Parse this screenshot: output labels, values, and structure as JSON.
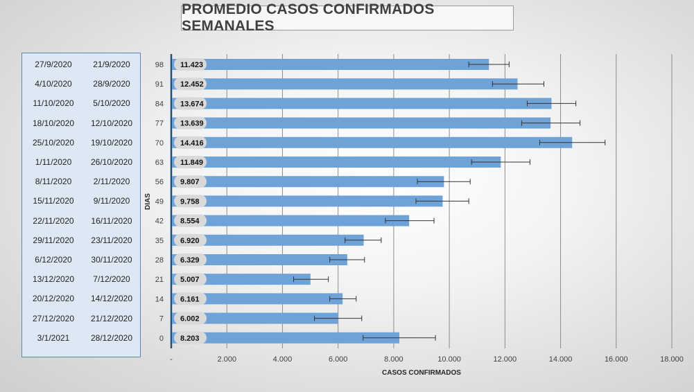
{
  "chart_data": {
    "type": "bar",
    "orientation": "horizontal",
    "title": "PROMEDIO CASOS CONFIRMADOS SEMANALES",
    "xlabel": "CASOS CONFIRMADOS",
    "ylabel": "DIAS",
    "xlim": [
      0,
      18000
    ],
    "x_ticks": [
      "-",
      "2.000",
      "4.000",
      "6.000",
      "8.000",
      "10.000",
      "12.000",
      "14.000",
      "16.000",
      "18.000"
    ],
    "grid": "vertical",
    "bar_color": "#6fa3d8",
    "categories": [
      "98",
      "91",
      "84",
      "77",
      "70",
      "63",
      "56",
      "49",
      "42",
      "35",
      "28",
      "21",
      "14",
      "7",
      "0"
    ],
    "values": [
      11423,
      12452,
      13674,
      13639,
      14416,
      11849,
      9807,
      9758,
      8554,
      6920,
      6329,
      5007,
      6161,
      6002,
      8203
    ],
    "value_labels": [
      "11.423",
      "12.452",
      "13.674",
      "13.639",
      "14.416",
      "11.849",
      "9.807",
      "9.758",
      "8.554",
      "6.920",
      "6.329",
      "5.007",
      "6.161",
      "6.002",
      "8.203"
    ],
    "error_low": [
      10700,
      11550,
      12800,
      12600,
      13250,
      10800,
      8850,
      8800,
      7700,
      6250,
      5700,
      4400,
      5700,
      5150,
      6900
    ],
    "error_high": [
      12150,
      13400,
      14550,
      14700,
      15600,
      12900,
      10750,
      10700,
      9450,
      7550,
      6950,
      5650,
      6650,
      6850,
      9500
    ],
    "date_rows": [
      [
        "27/9/2020",
        "21/9/2020"
      ],
      [
        "4/10/2020",
        "28/9/2020"
      ],
      [
        "11/10/2020",
        "5/10/2020"
      ],
      [
        "18/10/2020",
        "12/10/2020"
      ],
      [
        "25/10/2020",
        "19/10/2020"
      ],
      [
        "1/11/2020",
        "26/10/2020"
      ],
      [
        "8/11/2020",
        "2/11/2020"
      ],
      [
        "15/11/2020",
        "9/11/2020"
      ],
      [
        "22/11/2020",
        "16/11/2020"
      ],
      [
        "29/11/2020",
        "23/11/2020"
      ],
      [
        "6/12/2020",
        "30/11/2020"
      ],
      [
        "13/12/2020",
        "7/12/2020"
      ],
      [
        "20/12/2020",
        "14/12/2020"
      ],
      [
        "27/12/2020",
        "21/12/2020"
      ],
      [
        "3/1/2021",
        "28/12/2020"
      ]
    ]
  }
}
